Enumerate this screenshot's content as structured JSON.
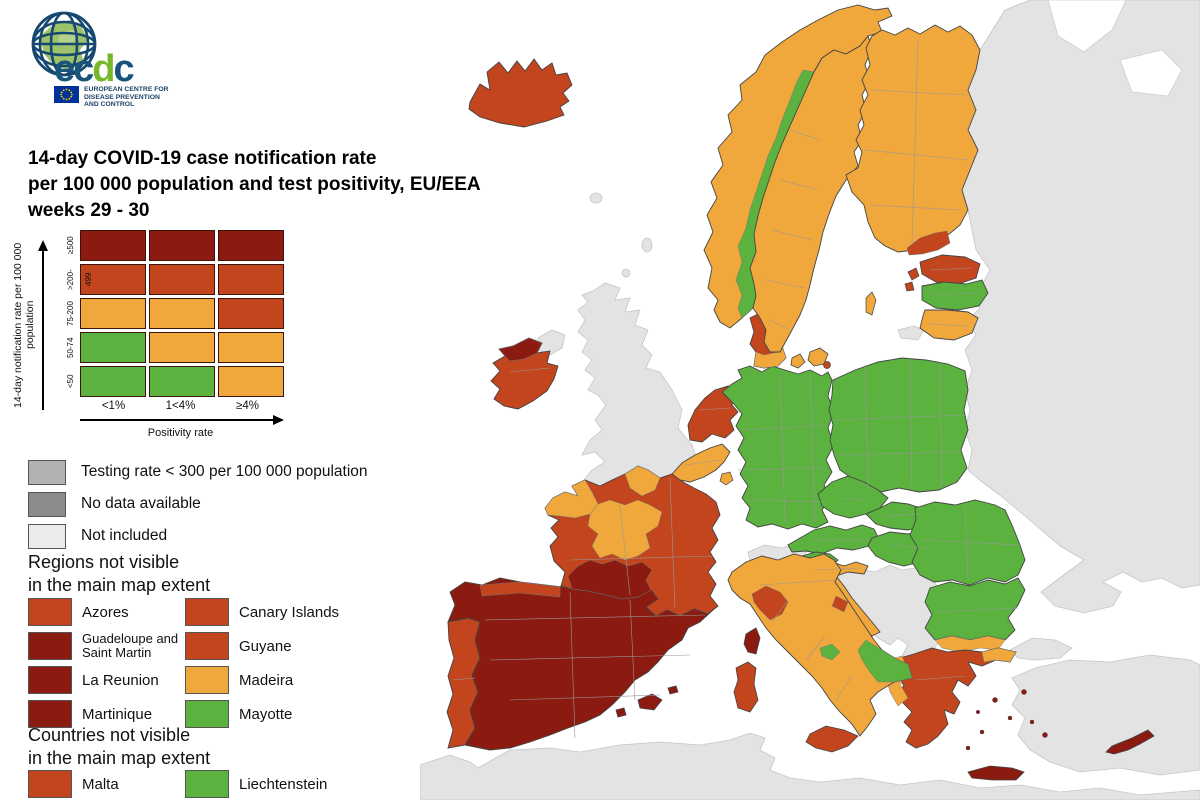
{
  "logo": {
    "wordmark_e": "e",
    "wordmark_c1": "c",
    "wordmark_d": "d",
    "wordmark_c2": "c",
    "tagline": "EUROPEAN CENTRE FOR\nDISEASE PREVENTION\nAND CONTROL"
  },
  "title": {
    "line1": "14-day COVID-19 case notification rate",
    "line2": "per 100 000 population and test positivity, EU/EEA",
    "line3": "weeks 29 - 30"
  },
  "matrix": {
    "y_axis_label": "14-day notification rate per 100 000 population",
    "x_axis_label": "Positivity rate",
    "row_labels": [
      "≥500",
      ">200-499",
      "75-200",
      "50-74",
      "<50"
    ],
    "col_labels": [
      "<1%",
      "1<4%",
      "≥4%"
    ],
    "cells": [
      [
        "dark_red",
        "dark_red",
        "dark_red"
      ],
      [
        "red",
        "red",
        "red"
      ],
      [
        "orange",
        "orange",
        "red"
      ],
      [
        "green",
        "orange",
        "orange"
      ],
      [
        "green",
        "green",
        "orange"
      ]
    ]
  },
  "colors": {
    "dark_red": "#8B1A10",
    "red": "#C2451D",
    "orange": "#F0A73B",
    "green": "#5BB23E",
    "gray_testing": "#B2B2B2",
    "gray_nodata": "#8C8C8C",
    "gray_notincluded": "#EBEBEB",
    "gray_map": "#E3E3E3"
  },
  "legend": [
    {
      "label": "Testing rate < 300 per 100 000 population",
      "color": "gray_testing"
    },
    {
      "label": "No data available",
      "color": "gray_nodata"
    },
    {
      "label": "Not included",
      "color": "gray_notincluded"
    }
  ],
  "regions_not_visible": {
    "heading": "Regions not visible\nin the main map extent",
    "items": [
      {
        "label": "Azores",
        "color": "red"
      },
      {
        "label": "Canary Islands",
        "color": "red"
      },
      {
        "label": "Guadeloupe and Saint Martin",
        "color": "dark_red"
      },
      {
        "label": "Guyane",
        "color": "red"
      },
      {
        "label": "La Reunion",
        "color": "dark_red"
      },
      {
        "label": "Madeira",
        "color": "orange"
      },
      {
        "label": "Martinique",
        "color": "dark_red"
      },
      {
        "label": "Mayotte",
        "color": "green"
      }
    ]
  },
  "countries_not_visible": {
    "heading": "Countries not visible\nin the main map extent",
    "items": [
      {
        "label": "Malta",
        "color": "red"
      },
      {
        "label": "Liechtenstein",
        "color": "green"
      }
    ]
  },
  "map": {
    "fills": {
      "east-europe": "gray_map",
      "turkey": "gray_map",
      "turkey-europe": "gray_map",
      "north-africa": "gray_map",
      "uk": "gray_map",
      "northern-ireland": "gray_map",
      "switzerland": "gray_map",
      "west-balkans": "gray_map",
      "kaliningrad": "gray_map",
      "faroe": "gray_map",
      "shetland": "gray_map",
      "orkney": "gray_map",
      "iceland": "red",
      "ireland": "red",
      "ireland-northwest": "dark_red",
      "portugal": "red",
      "spain": "dark_red",
      "spain-north-coast": "red",
      "spain-northeast": "red",
      "balearics": "dark_red",
      "france": "red",
      "france-brittany": "orange",
      "france-north": "orange",
      "france-center": "orange",
      "france-south": "dark_red",
      "corsica": "dark_red",
      "belgium": "orange",
      "netherlands": "red",
      "luxembourg": "orange",
      "germany": "green",
      "austria": "green",
      "czechia": "green",
      "slovakia": "green",
      "hungary": "green",
      "slovenia": "green",
      "croatia": "orange",
      "denmark": "red",
      "denmark-south": "orange",
      "denmark-islands": "orange",
      "bornholm": "red",
      "norway": "orange",
      "norway-central": "green",
      "sweden": "orange",
      "gotland": "orange",
      "finland": "orange",
      "finland-south": "red",
      "estonia": "red",
      "estonia-islands": "red",
      "latvia": "green",
      "lithuania": "orange",
      "poland": "green",
      "romania": "green",
      "bulgaria": "green",
      "bulgaria-south": "orange",
      "greece": "red",
      "greece-west": "orange",
      "greece-thrace": "orange",
      "crete": "dark_red",
      "aegean-islands": "dark_red",
      "cyprus": "dark_red",
      "italy": "orange",
      "italy-tuscany": "red",
      "italy-marche": "red",
      "italy-molise": "green",
      "italy-puglia": "green",
      "sicily": "red",
      "sardinia": "red"
    }
  }
}
